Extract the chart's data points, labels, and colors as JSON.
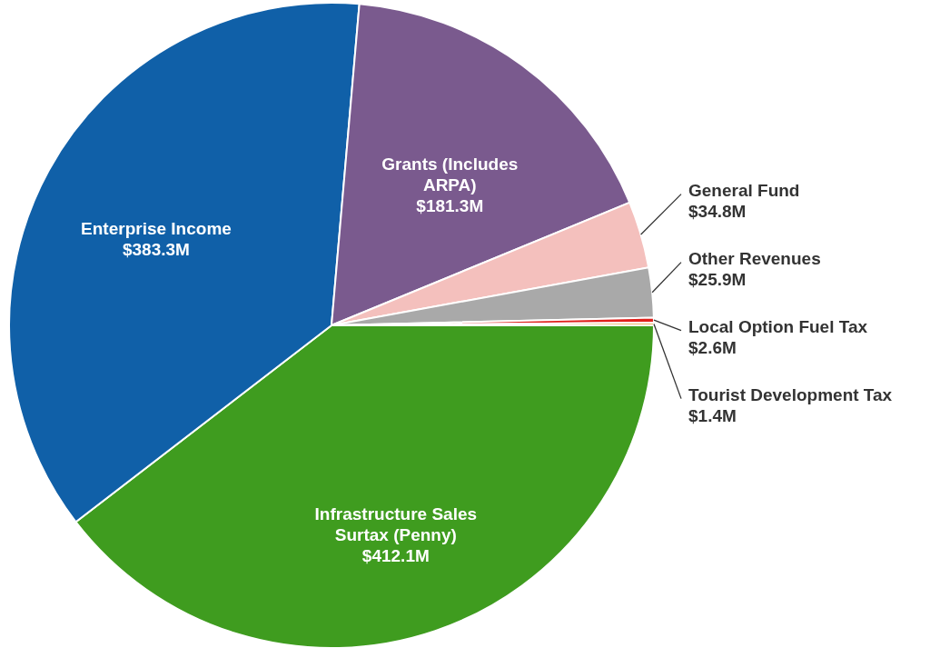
{
  "chart_data": {
    "type": "pie",
    "categories": [
      "Infrastructure Sales Surtax (Penny)",
      "Enterprise Income",
      "Grants (Includes ARPA)",
      "General Fund",
      "Other Revenues",
      "Local Option Fuel Tax",
      "Tourist Development Tax"
    ],
    "values": [
      412.1,
      383.3,
      181.3,
      34.8,
      25.9,
      2.6,
      1.4
    ],
    "value_labels": [
      "$412.1M",
      "$383.3M",
      "$181.3M",
      "$34.8M",
      "$25.9M",
      "$2.6M",
      "$1.4M"
    ],
    "colors": [
      "#3f9c1f",
      "#1060a8",
      "#7a5a8e",
      "#f4c0bd",
      "#a9a9a9",
      "#e0201b",
      "#e8a33d"
    ]
  }
}
